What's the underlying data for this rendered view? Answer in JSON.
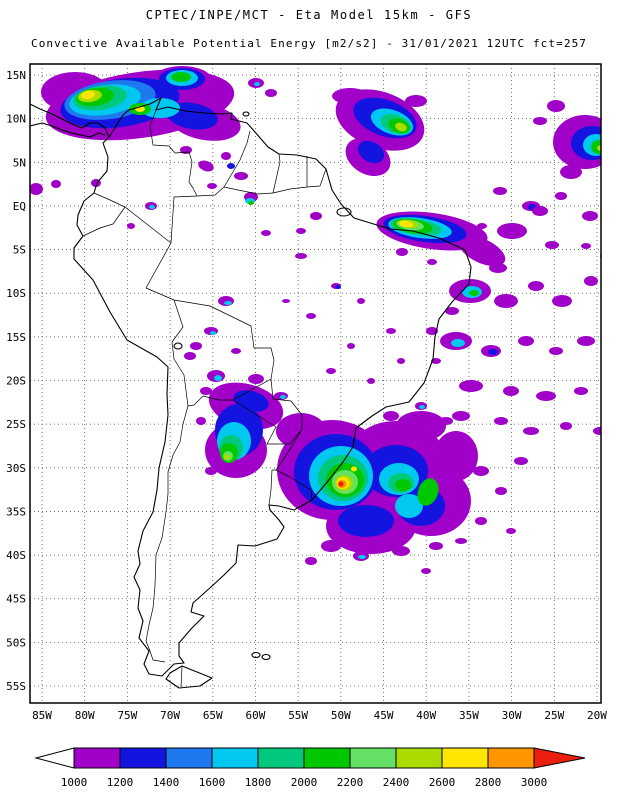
{
  "header": {
    "line1": "CPTEC/INPE/MCT -  Eta Model 15km - GFS",
    "line2": "Convective Available Potential Energy [m2/s2] - 31/01/2021 12UTC fct=257"
  },
  "map": {
    "lat_labels": [
      "15N",
      "10N",
      "5N",
      "EQ",
      "5S",
      "10S",
      "15S",
      "20S",
      "25S",
      "30S",
      "35S",
      "40S",
      "45S",
      "50S",
      "55S"
    ],
    "lon_labels": [
      "85W",
      "80W",
      "75W",
      "70W",
      "65W",
      "60W",
      "55W",
      "50W",
      "45W",
      "40W",
      "35W",
      "30W",
      "25W",
      "20W"
    ]
  },
  "colorbar": {
    "labels": [
      "1000",
      "1200",
      "1400",
      "1600",
      "1800",
      "2000",
      "2200",
      "2400",
      "2600",
      "2800",
      "3000"
    ],
    "palette": [
      "#a000c8",
      "#1414e1",
      "#1e78f0",
      "#00c8f0",
      "#00c87d",
      "#00c800",
      "#64e164",
      "#aadc00",
      "#ffe600",
      "#ff9600"
    ],
    "below_color": "#ffffff",
    "above_color": "#eb1e10"
  },
  "cape_field": {
    "units": "m2/s2",
    "blobs": [
      [
        140,
        105,
        95,
        33,
        -8,
        1
      ],
      [
        75,
        92,
        34,
        20,
        0,
        1
      ],
      [
        205,
        122,
        36,
        18,
        10,
        1
      ],
      [
        182,
        80,
        30,
        14,
        0,
        1
      ],
      [
        120,
        103,
        60,
        24,
        -8,
        2
      ],
      [
        192,
        116,
        26,
        13,
        10,
        2
      ],
      [
        182,
        79,
        23,
        11,
        0,
        2
      ],
      [
        110,
        100,
        46,
        19,
        -8,
        3
      ],
      [
        105,
        100,
        36,
        15,
        -8,
        4
      ],
      [
        182,
        78,
        16,
        8,
        0,
        4
      ],
      [
        160,
        108,
        20,
        10,
        0,
        4
      ],
      [
        100,
        98,
        27,
        12,
        -8,
        5
      ],
      [
        95,
        97,
        19,
        9,
        -8,
        6
      ],
      [
        181,
        77,
        10,
        5,
        0,
        6
      ],
      [
        140,
        109,
        11,
        6,
        0,
        6
      ],
      [
        90,
        96,
        12,
        6,
        -8,
        8
      ],
      [
        88,
        95,
        7,
        4,
        -8,
        9
      ],
      [
        140,
        109,
        5,
        3,
        0,
        9
      ],
      [
        256,
        83,
        8,
        5,
        0,
        1
      ],
      [
        271,
        93,
        6,
        4,
        0,
        1
      ],
      [
        257,
        84,
        3,
        2,
        0,
        4
      ],
      [
        186,
        150,
        6,
        4,
        0,
        1
      ],
      [
        206,
        166,
        8,
        5,
        20,
        1
      ],
      [
        226,
        156,
        5,
        4,
        0,
        1
      ],
      [
        241,
        176,
        7,
        4,
        0,
        1
      ],
      [
        212,
        186,
        5,
        3,
        0,
        1
      ],
      [
        251,
        197,
        7,
        5,
        0,
        1
      ],
      [
        231,
        166,
        4,
        3,
        0,
        2
      ],
      [
        250,
        201,
        5,
        3,
        0,
        4
      ],
      [
        251,
        203,
        3,
        2,
        0,
        6
      ],
      [
        380,
        120,
        46,
        28,
        20,
        1
      ],
      [
        368,
        157,
        24,
        17,
        30,
        1
      ],
      [
        350,
        96,
        18,
        8,
        0,
        1
      ],
      [
        416,
        101,
        11,
        6,
        0,
        1
      ],
      [
        385,
        118,
        33,
        18,
        20,
        2
      ],
      [
        371,
        152,
        14,
        10,
        30,
        2
      ],
      [
        392,
        122,
        22,
        12,
        20,
        4
      ],
      [
        396,
        124,
        16,
        9,
        20,
        5
      ],
      [
        399,
        126,
        11,
        7,
        20,
        6
      ],
      [
        401,
        127,
        6,
        4,
        20,
        8
      ],
      [
        585,
        142,
        32,
        27,
        0,
        1
      ],
      [
        556,
        106,
        9,
        6,
        0,
        1
      ],
      [
        571,
        172,
        11,
        7,
        0,
        1
      ],
      [
        540,
        121,
        7,
        4,
        0,
        1
      ],
      [
        592,
        143,
        21,
        17,
        0,
        2
      ],
      [
        596,
        145,
        13,
        11,
        0,
        4
      ],
      [
        599,
        147,
        8,
        7,
        0,
        6
      ],
      [
        601,
        148,
        4,
        3,
        0,
        8
      ],
      [
        500,
        191,
        7,
        4,
        0,
        1
      ],
      [
        531,
        206,
        9,
        5,
        0,
        1
      ],
      [
        561,
        196,
        6,
        4,
        0,
        1
      ],
      [
        590,
        216,
        8,
        5,
        0,
        1
      ],
      [
        610,
        192,
        6,
        8,
        0,
        1
      ],
      [
        482,
        226,
        5,
        3,
        0,
        1
      ],
      [
        532,
        207,
        4,
        3,
        0,
        2
      ],
      [
        432,
        231,
        56,
        18,
        8,
        1
      ],
      [
        482,
        251,
        25,
        12,
        25,
        1
      ],
      [
        512,
        231,
        15,
        8,
        0,
        1
      ],
      [
        540,
        211,
        8,
        5,
        0,
        1
      ],
      [
        552,
        245,
        7,
        4,
        0,
        1
      ],
      [
        425,
        229,
        42,
        13,
        8,
        2
      ],
      [
        420,
        228,
        32,
        10,
        8,
        4
      ],
      [
        416,
        227,
        26,
        8,
        8,
        5
      ],
      [
        413,
        226,
        20,
        7,
        8,
        6
      ],
      [
        410,
        225,
        14,
        5,
        8,
        7
      ],
      [
        408,
        224,
        10,
        4,
        8,
        8
      ],
      [
        406,
        224,
        7,
        3,
        8,
        9
      ],
      [
        402,
        252,
        6,
        4,
        0,
        1
      ],
      [
        432,
        262,
        5,
        3,
        0,
        1
      ],
      [
        498,
        268,
        9,
        5,
        0,
        1
      ],
      [
        470,
        291,
        21,
        12,
        0,
        1
      ],
      [
        472,
        292,
        10,
        6,
        0,
        4
      ],
      [
        474,
        293,
        5,
        3,
        0,
        6
      ],
      [
        506,
        301,
        12,
        7,
        0,
        1
      ],
      [
        536,
        286,
        8,
        5,
        0,
        1
      ],
      [
        562,
        301,
        10,
        6,
        0,
        1
      ],
      [
        591,
        281,
        7,
        5,
        0,
        1
      ],
      [
        610,
        301,
        6,
        8,
        0,
        1
      ],
      [
        452,
        311,
        7,
        4,
        0,
        1
      ],
      [
        432,
        331,
        6,
        4,
        0,
        1
      ],
      [
        436,
        361,
        5,
        3,
        0,
        1
      ],
      [
        456,
        341,
        16,
        9,
        0,
        1
      ],
      [
        458,
        343,
        7,
        4,
        0,
        4
      ],
      [
        491,
        351,
        10,
        6,
        0,
        1
      ],
      [
        493,
        352,
        5,
        3,
        0,
        2
      ],
      [
        526,
        341,
        8,
        5,
        0,
        1
      ],
      [
        556,
        351,
        7,
        4,
        0,
        1
      ],
      [
        586,
        341,
        9,
        5,
        0,
        1
      ],
      [
        610,
        351,
        5,
        7,
        0,
        1
      ],
      [
        471,
        386,
        12,
        6,
        0,
        1
      ],
      [
        511,
        391,
        8,
        5,
        0,
        1
      ],
      [
        546,
        396,
        10,
        5,
        0,
        1
      ],
      [
        581,
        391,
        7,
        4,
        0,
        1
      ],
      [
        606,
        256,
        6,
        4,
        0,
        1
      ],
      [
        586,
        246,
        5,
        3,
        0,
        1
      ],
      [
        461,
        416,
        9,
        5,
        0,
        1
      ],
      [
        501,
        421,
        7,
        4,
        0,
        1
      ],
      [
        531,
        431,
        8,
        4,
        0,
        1
      ],
      [
        566,
        426,
        6,
        4,
        0,
        1
      ],
      [
        600,
        431,
        7,
        4,
        0,
        1
      ],
      [
        266,
        233,
        5,
        3,
        0,
        1
      ],
      [
        301,
        256,
        6,
        3,
        0,
        1
      ],
      [
        336,
        286,
        5,
        3,
        0,
        1
      ],
      [
        361,
        301,
        4,
        3,
        0,
        1
      ],
      [
        311,
        316,
        5,
        3,
        0,
        1
      ],
      [
        286,
        301,
        4,
        2,
        0,
        1
      ],
      [
        391,
        331,
        5,
        3,
        0,
        1
      ],
      [
        351,
        346,
        4,
        3,
        0,
        1
      ],
      [
        331,
        371,
        5,
        3,
        0,
        1
      ],
      [
        371,
        381,
        4,
        3,
        0,
        1
      ],
      [
        401,
        361,
        4,
        3,
        0,
        1
      ],
      [
        338,
        287,
        3,
        2,
        0,
        2
      ],
      [
        316,
        216,
        6,
        4,
        0,
        1
      ],
      [
        301,
        231,
        5,
        3,
        0,
        1
      ],
      [
        226,
        301,
        8,
        5,
        0,
        1
      ],
      [
        228,
        303,
        4,
        2,
        0,
        4
      ],
      [
        211,
        331,
        7,
        4,
        0,
        1
      ],
      [
        196,
        346,
        6,
        4,
        0,
        1
      ],
      [
        213,
        333,
        3,
        2,
        0,
        4
      ],
      [
        236,
        351,
        5,
        3,
        0,
        1
      ],
      [
        190,
        356,
        6,
        4,
        0,
        1
      ],
      [
        151,
        206,
        6,
        4,
        0,
        1
      ],
      [
        152,
        207,
        3,
        2,
        0,
        4
      ],
      [
        131,
        226,
        4,
        3,
        0,
        1
      ],
      [
        36,
        189,
        7,
        6,
        0,
        1
      ],
      [
        56,
        184,
        5,
        4,
        0,
        1
      ],
      [
        96,
        183,
        5,
        4,
        0,
        1
      ],
      [
        216,
        376,
        9,
        6,
        0,
        1
      ],
      [
        218,
        378,
        4,
        3,
        0,
        4
      ],
      [
        246,
        406,
        38,
        22,
        15,
        1
      ],
      [
        236,
        450,
        31,
        28,
        0,
        1
      ],
      [
        206,
        391,
        6,
        4,
        0,
        1
      ],
      [
        201,
        421,
        5,
        4,
        0,
        1
      ],
      [
        211,
        471,
        6,
        4,
        0,
        1
      ],
      [
        256,
        379,
        8,
        5,
        0,
        1
      ],
      [
        281,
        396,
        7,
        4,
        0,
        1
      ],
      [
        239,
        430,
        24,
        26,
        0,
        2
      ],
      [
        251,
        401,
        18,
        10,
        15,
        2
      ],
      [
        234,
        441,
        17,
        19,
        0,
        4
      ],
      [
        283,
        397,
        3,
        2,
        0,
        4
      ],
      [
        231,
        448,
        12,
        13,
        0,
        5
      ],
      [
        229,
        453,
        9,
        10,
        0,
        6
      ],
      [
        228,
        456,
        5,
        5,
        0,
        7
      ],
      [
        227,
        457,
        3,
        3,
        0,
        8
      ],
      [
        332,
        470,
        55,
        50,
        0,
        1
      ],
      [
        396,
        461,
        50,
        40,
        0,
        1
      ],
      [
        431,
        501,
        40,
        35,
        0,
        1
      ],
      [
        371,
        526,
        45,
        28,
        0,
        1
      ],
      [
        301,
        431,
        25,
        18,
        0,
        1
      ],
      [
        421,
        426,
        25,
        15,
        0,
        1
      ],
      [
        456,
        456,
        22,
        25,
        0,
        1
      ],
      [
        336,
        472,
        42,
        38,
        0,
        2
      ],
      [
        396,
        471,
        32,
        26,
        0,
        2
      ],
      [
        421,
        506,
        24,
        20,
        0,
        2
      ],
      [
        366,
        521,
        28,
        16,
        0,
        2
      ],
      [
        341,
        476,
        32,
        30,
        0,
        4
      ],
      [
        399,
        479,
        20,
        16,
        0,
        4
      ],
      [
        409,
        506,
        14,
        12,
        0,
        4
      ],
      [
        343,
        478,
        25,
        23,
        0,
        5
      ],
      [
        401,
        483,
        13,
        10,
        0,
        5
      ],
      [
        345,
        480,
        19,
        17,
        0,
        6
      ],
      [
        403,
        485,
        8,
        6,
        0,
        6
      ],
      [
        428,
        492,
        10,
        14,
        20,
        6
      ],
      [
        345,
        482,
        13,
        12,
        0,
        7
      ],
      [
        344,
        483,
        9,
        8,
        0,
        8
      ],
      [
        343,
        483,
        6.5,
        6,
        0,
        9
      ],
      [
        354,
        469,
        3,
        2.5,
        0,
        9
      ],
      [
        342,
        484,
        4.5,
        4,
        0,
        10
      ],
      [
        341,
        484,
        2.5,
        2.5,
        0,
        11
      ],
      [
        331,
        546,
        10,
        6,
        0,
        1
      ],
      [
        361,
        556,
        8,
        5,
        0,
        1
      ],
      [
        401,
        551,
        9,
        5,
        0,
        1
      ],
      [
        436,
        546,
        7,
        4,
        0,
        1
      ],
      [
        311,
        561,
        6,
        4,
        0,
        1
      ],
      [
        362,
        557,
        4,
        2,
        0,
        4
      ],
      [
        481,
        471,
        8,
        5,
        0,
        1
      ],
      [
        501,
        491,
        6,
        4,
        0,
        1
      ],
      [
        521,
        461,
        7,
        4,
        0,
        1
      ],
      [
        481,
        521,
        6,
        4,
        0,
        1
      ],
      [
        511,
        531,
        5,
        3,
        0,
        1
      ],
      [
        461,
        541,
        6,
        3,
        0,
        1
      ],
      [
        391,
        416,
        8,
        5,
        0,
        1
      ],
      [
        421,
        406,
        6,
        4,
        0,
        1
      ],
      [
        446,
        421,
        7,
        4,
        0,
        1
      ],
      [
        422,
        407,
        3,
        2,
        0,
        4
      ],
      [
        426,
        571,
        5,
        3,
        0,
        1
      ]
    ]
  }
}
